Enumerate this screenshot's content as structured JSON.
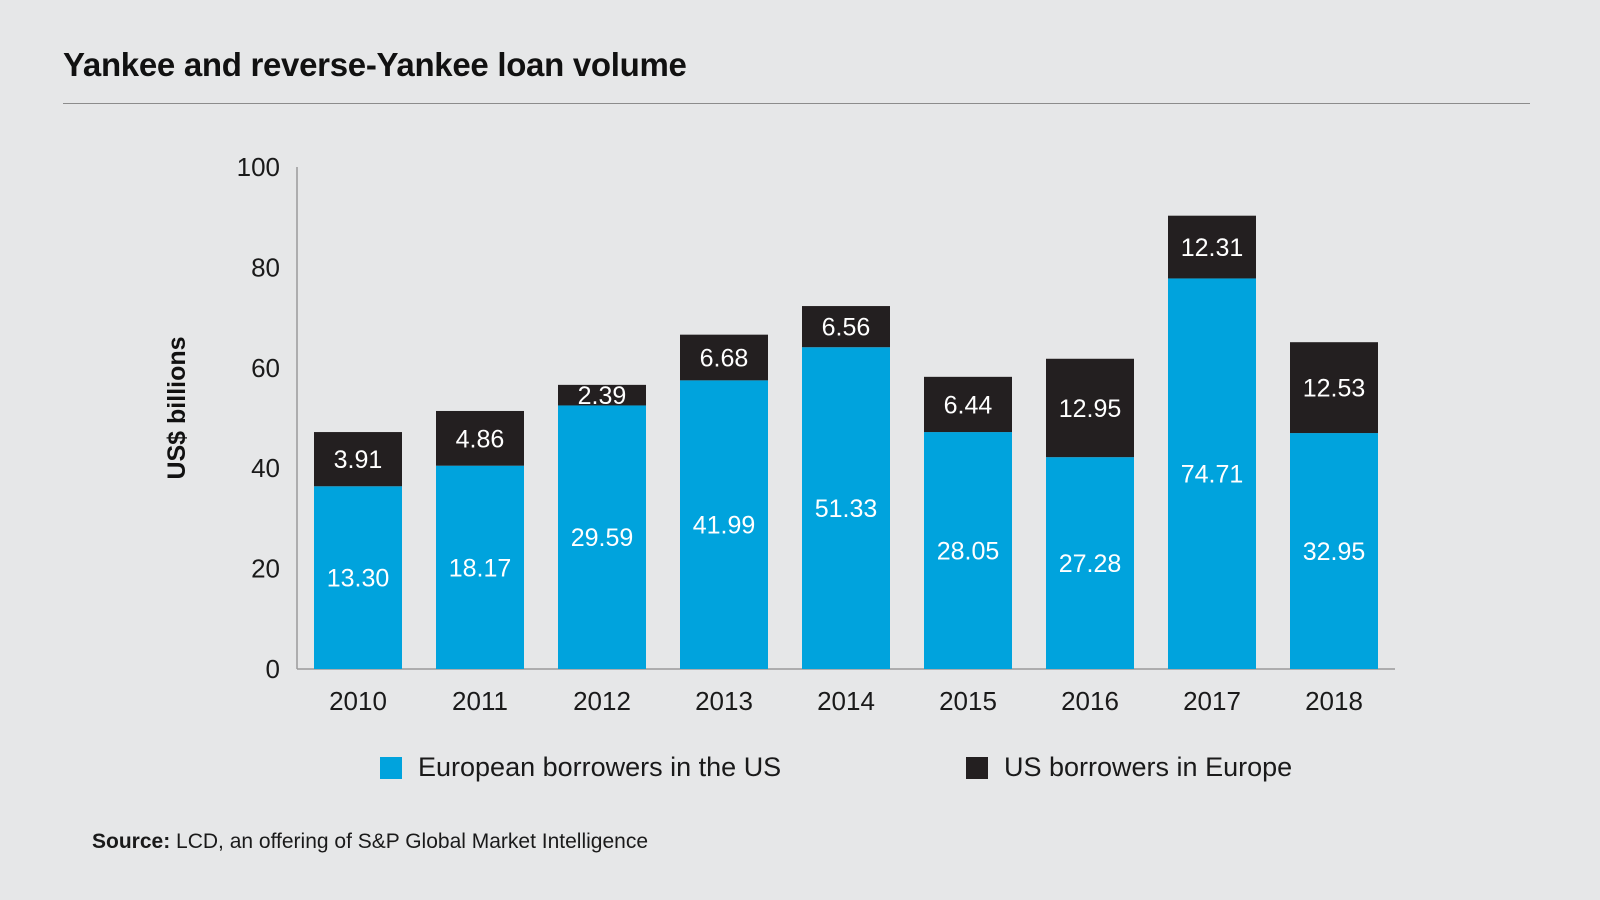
{
  "title": "Yankee and reverse-Yankee loan volume",
  "source": {
    "label": "Source:",
    "text": " LCD, an offering of S&P Global Market Intelligence"
  },
  "legend": [
    {
      "label": "European borrowers in the US",
      "color": "#00a3dd"
    },
    {
      "label": "US borrowers in Europe",
      "color": "#231f20"
    }
  ],
  "chart_data": {
    "type": "bar",
    "stacked": true,
    "title": "Yankee and reverse-Yankee loan volume",
    "xlabel": "",
    "ylabel": "US$ billions",
    "ylim": [
      0,
      100
    ],
    "yticks": [
      0,
      20,
      40,
      60,
      80,
      100
    ],
    "categories": [
      "2010",
      "2011",
      "2012",
      "2013",
      "2014",
      "2015",
      "2016",
      "2017",
      "2018"
    ],
    "series": [
      {
        "name": "European borrowers in the US",
        "color": "#00a3dd",
        "values": [
          13.3,
          18.17,
          29.59,
          41.99,
          51.33,
          28.05,
          27.28,
          74.71,
          32.95
        ],
        "labels": [
          "13.30",
          "18.17",
          "29.59",
          "41.99",
          "51.33",
          "28.05",
          "27.28",
          "74.71",
          "32.95"
        ]
      },
      {
        "name": "US borrowers in Europe",
        "color": "#231f20",
        "values": [
          3.91,
          4.86,
          2.39,
          6.68,
          6.56,
          6.44,
          12.95,
          12.31,
          12.53
        ],
        "labels": [
          "3.91",
          "4.86",
          "2.39",
          "6.68",
          "6.56",
          "6.44",
          "12.95",
          "12.31",
          "12.53"
        ]
      }
    ],
    "grid": false,
    "legend_position": "bottom"
  }
}
